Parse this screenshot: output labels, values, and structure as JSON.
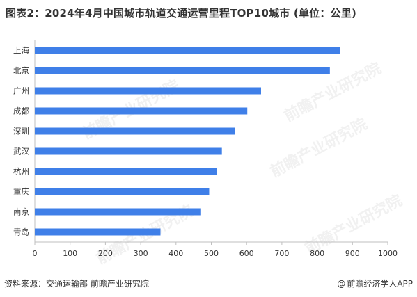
{
  "title": "图表2：2024年4月中国城市轨道交通运营里程TOP10城市 (单位：公里)",
  "footer": {
    "source": "资料来源：交通运输部 前瞻产业研究院",
    "brand_icon": "at-icon",
    "brand": "前瞻经济学人APP"
  },
  "watermark": "前瞻产业研究院",
  "colors": {
    "bar": "#3F7FE8",
    "axis": "#BFBFBF",
    "text": "#333333"
  },
  "chart_data": {
    "type": "bar",
    "orientation": "horizontal",
    "categories": [
      "上海",
      "北京",
      "广州",
      "成都",
      "深圳",
      "武汉",
      "杭州",
      "重庆",
      "南京",
      "青岛"
    ],
    "values": [
      865,
      836,
      641,
      602,
      567,
      530,
      516,
      494,
      471,
      356
    ],
    "xlim": [
      0,
      1000
    ],
    "xticks": [
      "0",
      "100",
      "200",
      "300",
      "400",
      "500",
      "600",
      "700",
      "800",
      "900",
      "1000"
    ],
    "grid": false,
    "legend": "none"
  }
}
